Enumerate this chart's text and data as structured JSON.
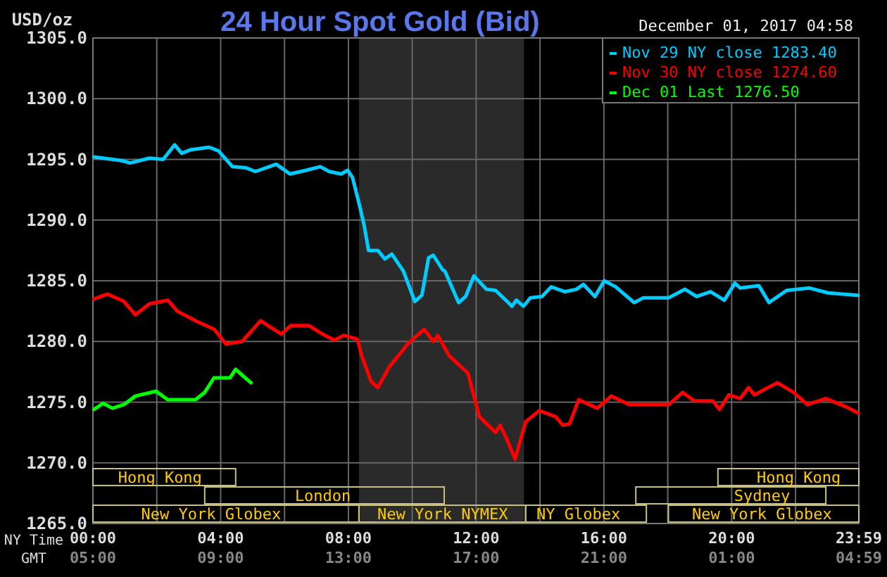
{
  "chart_data": {
    "type": "line",
    "title": "24 Hour Spot Gold (Bid)",
    "subtitle": "December 01, 2017 04:58",
    "ylabel": "USD/oz",
    "xlabel": "NY Time",
    "x2label": "GMT",
    "xlim": [
      0,
      23.983
    ],
    "xticks": [
      {
        "value": 0,
        "label": "00:00"
      },
      {
        "value": 2,
        "label": null
      },
      {
        "value": 4,
        "label": "04:00"
      },
      {
        "value": 6,
        "label": null
      },
      {
        "value": 8,
        "label": "08:00"
      },
      {
        "value": 10,
        "label": null
      },
      {
        "value": 12,
        "label": "12:00"
      },
      {
        "value": 14,
        "label": null
      },
      {
        "value": 16,
        "label": "16:00"
      },
      {
        "value": 18,
        "label": null
      },
      {
        "value": 20,
        "label": "20:00"
      },
      {
        "value": 22,
        "label": null
      },
      {
        "value": 23.983,
        "label": "23:59"
      }
    ],
    "x2lim": [
      "2017-11-30T05:00",
      "2017-12-01T04:59"
    ],
    "x2ticks": [
      {
        "value": "2017-11-30T05:00",
        "label": "05:00"
      },
      {
        "value": "2017-11-30T09:00",
        "label": "09:00"
      },
      {
        "value": "2017-11-30T13:00",
        "label": "13:00"
      },
      {
        "value": "2017-11-30T17:00",
        "label": "17:00"
      },
      {
        "value": "2017-11-30T21:00",
        "label": "21:00"
      },
      {
        "value": "2017-12-01T01:00",
        "label": "01:00"
      },
      {
        "value": "2017-12-01T04:59",
        "label": "04:59"
      }
    ],
    "ylim": [
      1265,
      1305
    ],
    "yticks": [
      {
        "value": 1265,
        "label": "1265.0"
      },
      {
        "value": 1270,
        "label": "1270.0"
      },
      {
        "value": 1275,
        "label": "1275.0"
      },
      {
        "value": 1280,
        "label": "1280.0"
      },
      {
        "value": 1285,
        "label": "1285.0"
      },
      {
        "value": 1290,
        "label": "1290.0"
      },
      {
        "value": 1295,
        "label": "1295.0"
      },
      {
        "value": 1300,
        "label": "1300.0"
      },
      {
        "value": 1305,
        "label": "1305.0"
      }
    ],
    "grid": true,
    "legend": "top right",
    "marker": "none",
    "line_style": "solid",
    "bands": [
      {
        "axis": "x",
        "from": 8.33,
        "to": 13.5,
        "color": "#2a2a2a"
      }
    ],
    "annotations": [
      "Hong Kong",
      "Hong Kong",
      "London",
      "Sydney",
      "New York Globex",
      "New York NYMEX",
      "NY Globex",
      "New York Globex"
    ],
    "series": [
      {
        "name": "Nov 29 NY close 1283.40",
        "color": "#00ccff",
        "x": [
          0.03,
          0.9,
          1.17,
          1.77,
          2.2,
          2.56,
          2.78,
          3.07,
          3.64,
          3.93,
          4.37,
          4.8,
          5.09,
          5.74,
          6.17,
          6.68,
          7.12,
          7.4,
          7.77,
          7.98,
          8.13,
          8.34,
          8.49,
          8.63,
          8.92,
          9.14,
          9.36,
          9.72,
          10.08,
          10.3,
          10.51,
          10.66,
          10.95,
          11.02,
          11.45,
          11.67,
          11.93,
          12.32,
          12.61,
          12.97,
          13.12,
          13.26,
          13.48,
          13.7,
          14.06,
          14.35,
          14.78,
          15.14,
          15.36,
          15.72,
          16.01,
          16.37,
          16.95,
          17.24,
          18.03,
          18.54,
          18.9,
          19.34,
          19.77,
          20.1,
          20.27,
          20.85,
          21.17,
          21.72,
          22.44,
          23.02,
          23.96
        ],
        "values": [
          1295.2,
          1294.9,
          1294.7,
          1295.1,
          1295.0,
          1296.2,
          1295.5,
          1295.8,
          1296.0,
          1295.7,
          1294.4,
          1294.3,
          1294.0,
          1294.6,
          1293.8,
          1294.1,
          1294.4,
          1294.0,
          1293.8,
          1294.1,
          1293.5,
          1291.3,
          1289.6,
          1287.5,
          1287.5,
          1286.8,
          1287.2,
          1285.8,
          1283.3,
          1283.8,
          1286.9,
          1287.1,
          1285.9,
          1285.8,
          1283.2,
          1283.7,
          1285.4,
          1284.3,
          1284.2,
          1283.3,
          1282.9,
          1283.4,
          1282.9,
          1283.6,
          1283.7,
          1284.5,
          1284.1,
          1284.3,
          1284.7,
          1283.7,
          1285.0,
          1284.5,
          1283.2,
          1283.6,
          1283.6,
          1284.3,
          1283.7,
          1284.1,
          1283.4,
          1284.8,
          1284.4,
          1284.6,
          1283.2,
          1284.2,
          1284.4,
          1284.0,
          1283.8
        ]
      },
      {
        "name": "Nov 30 NY close 1274.60",
        "color": "#ff0000",
        "x": [
          0.03,
          0.46,
          0.97,
          1.33,
          1.77,
          2.35,
          2.64,
          3.22,
          3.8,
          4.16,
          4.67,
          5.25,
          5.9,
          6.19,
          6.77,
          7.13,
          7.56,
          7.85,
          8.28,
          8.42,
          8.71,
          8.92,
          9.28,
          9.86,
          10.37,
          10.66,
          10.8,
          11.16,
          11.74,
          12.1,
          12.61,
          12.75,
          12.97,
          13.22,
          13.55,
          13.98,
          14.49,
          14.71,
          14.92,
          15.21,
          15.79,
          16.23,
          16.8,
          18.03,
          18.47,
          18.83,
          19.41,
          19.62,
          19.91,
          20.27,
          20.53,
          20.71,
          21.43,
          21.94,
          22.37,
          22.95,
          23.6,
          23.96
        ],
        "values": [
          1283.5,
          1283.9,
          1283.3,
          1282.2,
          1283.1,
          1283.4,
          1282.5,
          1281.7,
          1281.0,
          1279.8,
          1280.0,
          1281.7,
          1280.6,
          1281.3,
          1281.3,
          1280.7,
          1280.1,
          1280.5,
          1280.2,
          1278.8,
          1276.7,
          1276.2,
          1277.9,
          1279.8,
          1281.0,
          1280.0,
          1280.5,
          1278.8,
          1277.4,
          1273.8,
          1272.5,
          1273.1,
          1271.9,
          1270.3,
          1273.4,
          1274.3,
          1273.8,
          1273.1,
          1273.2,
          1275.2,
          1274.5,
          1275.5,
          1274.8,
          1274.8,
          1275.8,
          1275.1,
          1275.1,
          1274.4,
          1275.6,
          1275.3,
          1276.2,
          1275.6,
          1276.6,
          1275.8,
          1274.8,
          1275.3,
          1274.6,
          1274.1
        ]
      },
      {
        "name": "Dec 01 Last 1276.50",
        "color": "#00ff00",
        "x": [
          0.03,
          0.32,
          0.61,
          0.97,
          1.33,
          1.98,
          2.34,
          3.21,
          3.5,
          3.79,
          4.29,
          4.47,
          4.73,
          4.95
        ],
        "values": [
          1274.4,
          1274.9,
          1274.5,
          1274.8,
          1275.5,
          1275.9,
          1275.2,
          1275.2,
          1275.8,
          1277.0,
          1277.0,
          1277.7,
          1277.1,
          1276.6
        ]
      }
    ]
  }
}
